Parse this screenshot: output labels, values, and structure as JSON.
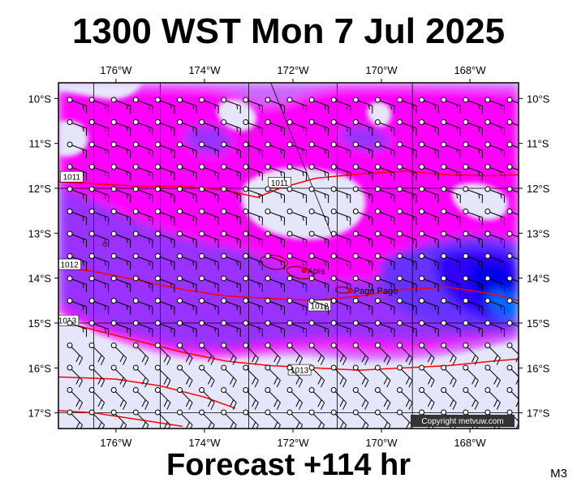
{
  "title": "1300 WST Mon 7 Jul 2025",
  "footer": "Forecast +114 hr",
  "model_code": "M3",
  "copyright": "Copyright metvuw.com",
  "map": {
    "lon_range": [
      -177.3,
      -166.9
    ],
    "lat_range": [
      -17.35,
      -9.65
    ],
    "lon_ticks": [
      {
        "value": -176,
        "label": "176°W"
      },
      {
        "value": -174,
        "label": "174°W"
      },
      {
        "value": -172,
        "label": "172°W"
      },
      {
        "value": -170,
        "label": "170°W"
      },
      {
        "value": -168,
        "label": "168°W"
      }
    ],
    "lat_ticks": [
      {
        "value": -10,
        "label": "10°S"
      },
      {
        "value": -11,
        "label": "11°S"
      },
      {
        "value": -12,
        "label": "12°S"
      },
      {
        "value": -13,
        "label": "13°S"
      },
      {
        "value": -14,
        "label": "14°S"
      },
      {
        "value": -15,
        "label": "15°S"
      },
      {
        "value": -16,
        "label": "16°S"
      },
      {
        "value": -17,
        "label": "17°S"
      }
    ],
    "isobars": [
      {
        "label": "1011",
        "points": [
          [
            -177.3,
            -11.85
          ],
          [
            -176.5,
            -11.9
          ],
          [
            -175.5,
            -11.95
          ],
          [
            -174.5,
            -11.95
          ],
          [
            -173.5,
            -12.05
          ],
          [
            -172.8,
            -12.2
          ],
          [
            -172.3,
            -12.0
          ],
          [
            -171.5,
            -11.78
          ],
          [
            -170.5,
            -11.68
          ],
          [
            -169.5,
            -11.62
          ],
          [
            -168.5,
            -11.7
          ],
          [
            -167.5,
            -11.72
          ],
          [
            -166.9,
            -11.7
          ]
        ],
        "label_positions": [
          [
            -177.0,
            -11.75
          ],
          [
            -172.3,
            -11.88
          ]
        ]
      },
      {
        "label": "1012",
        "points": [
          [
            -177.3,
            -13.75
          ],
          [
            -176.5,
            -13.85
          ],
          [
            -175.5,
            -14.05
          ],
          [
            -174.5,
            -14.25
          ],
          [
            -173.5,
            -14.4
          ],
          [
            -172.5,
            -14.45
          ],
          [
            -171.5,
            -14.5
          ],
          [
            -170.5,
            -14.4
          ],
          [
            -169.5,
            -14.25
          ],
          [
            -168.5,
            -14.2
          ],
          [
            -167.5,
            -14.35
          ],
          [
            -166.9,
            -14.5
          ]
        ],
        "label_positions": [
          [
            -177.05,
            -13.7
          ],
          [
            -171.4,
            -14.62
          ]
        ]
      },
      {
        "label": "1013",
        "points": [
          [
            -177.3,
            -14.95
          ],
          [
            -176.3,
            -15.2
          ],
          [
            -175.5,
            -15.4
          ],
          [
            -174.5,
            -15.65
          ],
          [
            -173.5,
            -15.85
          ],
          [
            -172.5,
            -15.95
          ],
          [
            -171.5,
            -16.0
          ],
          [
            -170.5,
            -16.05
          ],
          [
            -169.5,
            -16.0
          ],
          [
            -168.5,
            -15.95
          ],
          [
            -167.5,
            -15.85
          ],
          [
            -166.9,
            -15.8
          ]
        ],
        "label_positions": [
          [
            -177.1,
            -14.95
          ],
          [
            -171.85,
            -16.05
          ]
        ]
      },
      {
        "label": "",
        "points": [
          [
            -177.3,
            -16.2
          ],
          [
            -176.0,
            -16.25
          ],
          [
            -175.0,
            -16.4
          ],
          [
            -174.0,
            -16.65
          ],
          [
            -173.3,
            -16.9
          ]
        ],
        "label_positions": []
      },
      {
        "label": "",
        "points": [
          [
            -177.3,
            -16.95
          ],
          [
            -176.5,
            -17.0
          ],
          [
            -175.5,
            -17.15
          ],
          [
            -174.5,
            -17.3
          ]
        ],
        "label_positions": []
      }
    ],
    "places": [
      {
        "name": "Apia",
        "lon": -171.75,
        "lat": -13.83
      },
      {
        "name": "Pago Pago",
        "lon": -170.7,
        "lat": -14.28
      }
    ],
    "colors": {
      "background_ocean": "#e6e6fa",
      "light_violet": "#cc66ff",
      "magenta": "#ff00ff",
      "violet": "#9933ff",
      "purple_blue": "#6633ff",
      "blue": "#3300ff",
      "deep_blue": "#0000ee",
      "cyan_blue": "#0066ff",
      "isobar": "#ff0000",
      "coast": "#880000",
      "grid": "#000000"
    }
  }
}
